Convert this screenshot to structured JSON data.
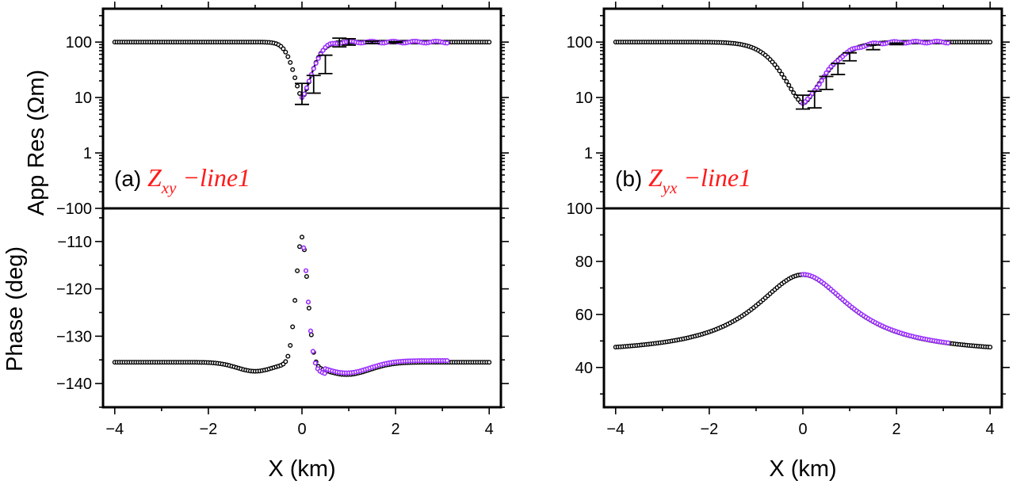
{
  "figure": {
    "ylabel_top": "App Res (Ωm)",
    "ylabel_bottom": "Phase (deg)",
    "xlabel": "X (km)",
    "colors": {
      "model": "#000000",
      "data": "#9b30ff",
      "label": "#ff1a1a"
    }
  },
  "chart_data": [
    {
      "type": "scatter",
      "panel": "a",
      "label_prefix": "(a)",
      "label_main": "Z",
      "label_sub": "xy",
      "label_suffix": "−line1",
      "x_ticks": [
        "−4",
        "−2",
        "0",
        "2",
        "4"
      ],
      "xlim": [
        -4.25,
        4.25
      ],
      "top": {
        "yscale": "log",
        "ylim": [
          0.1,
          400
        ],
        "y_ticks": [
          {
            "v": 100,
            "t": "100"
          },
          {
            "v": 10,
            "t": "10"
          },
          {
            "v": 1,
            "t": "1"
          },
          {
            "v": 0.1,
            "t": "−100"
          }
        ],
        "model": {
          "base": 100,
          "min": 10,
          "x0": 0.0,
          "w_left": 0.25,
          "w_right": 0.3,
          "p": 1.6
        },
        "data": {
          "x_start": 0.0,
          "x_end": 3.1,
          "x_step": 0.05
        },
        "errorbars": [
          {
            "x": 0.0,
            "lo": 7.5,
            "hi": 18
          },
          {
            "x": 0.25,
            "lo": 12,
            "hi": 25
          },
          {
            "x": 0.5,
            "lo": 27,
            "hi": 58
          },
          {
            "x": 0.8,
            "lo": 82,
            "hi": 118
          },
          {
            "x": 1.0,
            "lo": 88,
            "hi": 115
          },
          {
            "x": 1.5,
            "lo": 95,
            "hi": 104
          },
          {
            "x": 2.0,
            "lo": 98,
            "hi": 102
          }
        ]
      },
      "bottom": {
        "yscale": "linear",
        "ylim": [
          -145,
          -103
        ],
        "y_ticks": [
          {
            "v": -110,
            "t": "−110"
          },
          {
            "v": -120,
            "t": "−120"
          },
          {
            "v": -130,
            "t": "−130"
          },
          {
            "v": -140,
            "t": "−140"
          }
        ],
        "model_desc": "base −135.5, dips to −137.3 near x=−1, peaks at −109 at x=0, minimum −137.8 at x=1, recovers to −135.5 at x=4"
      }
    },
    {
      "type": "scatter",
      "panel": "b",
      "label_prefix": "(b)",
      "label_main": "Z",
      "label_sub": "yx",
      "label_suffix": "−line1",
      "x_ticks": [
        "−4",
        "−2",
        "0",
        "2",
        "4"
      ],
      "xlim": [
        -4.25,
        4.25
      ],
      "top": {
        "yscale": "log",
        "ylim": [
          0.1,
          400
        ],
        "y_ticks": [
          {
            "v": 100,
            "t": "100"
          },
          {
            "v": 10,
            "t": "10"
          },
          {
            "v": 1,
            "t": "1"
          },
          {
            "v": 0.1,
            "t": "100"
          }
        ],
        "model": {
          "base": 100,
          "min": 7.8,
          "x0": 0.0,
          "w_left": 0.6,
          "w_right": 0.65,
          "p": 1.5
        },
        "data": {
          "x_start": 0.0,
          "x_end": 3.1,
          "x_step": 0.05
        },
        "errorbars": [
          {
            "x": 0.0,
            "lo": 6.2,
            "hi": 11
          },
          {
            "x": 0.25,
            "lo": 6.5,
            "hi": 13
          },
          {
            "x": 0.5,
            "lo": 14,
            "hi": 24
          },
          {
            "x": 0.75,
            "lo": 26,
            "hi": 41
          },
          {
            "x": 1.0,
            "lo": 46,
            "hi": 64
          },
          {
            "x": 1.5,
            "lo": 73,
            "hi": 89
          },
          {
            "x": 2.0,
            "lo": 90,
            "hi": 96
          }
        ]
      },
      "bottom": {
        "yscale": "linear",
        "ylim": [
          25,
          100
        ],
        "y_ticks": [
          {
            "v": 80,
            "t": "80"
          },
          {
            "v": 60,
            "t": "60"
          },
          {
            "v": 40,
            "t": "40"
          }
        ],
        "model_desc": "base 45 at x=±4, smooth peak of 75 at x=0"
      }
    }
  ]
}
